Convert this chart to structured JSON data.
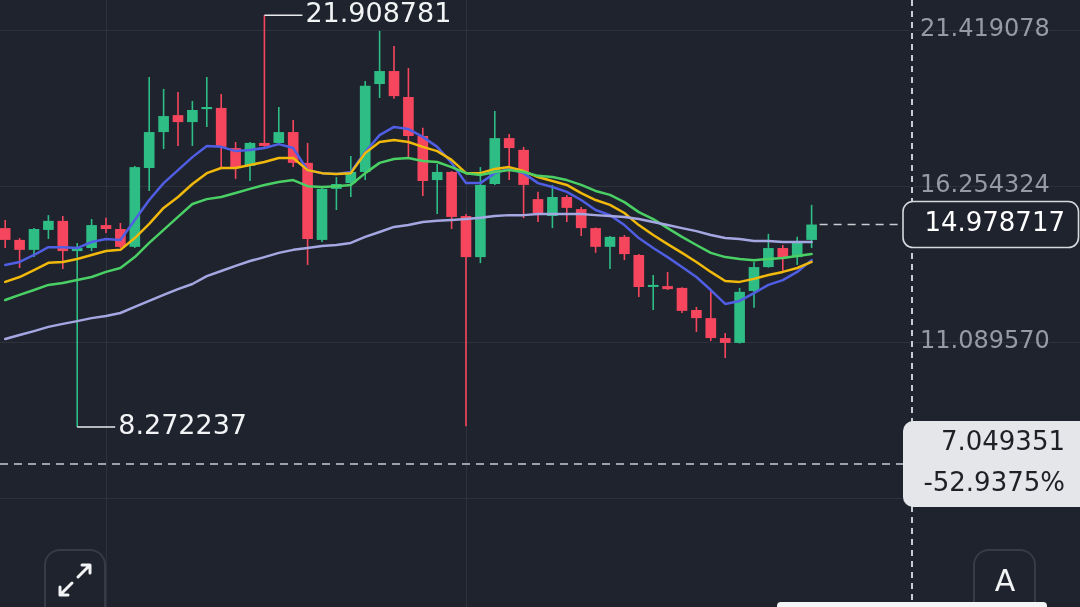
{
  "chart_data": {
    "type": "candlestick",
    "categories": [
      null,
      null,
      null,
      null,
      null,
      null,
      null,
      null,
      null,
      null,
      null,
      null,
      null,
      null,
      null,
      null,
      null,
      null,
      null,
      null,
      null,
      null,
      null,
      null,
      null,
      null,
      null,
      null,
      null,
      null,
      null,
      null,
      null,
      null,
      null,
      null,
      null,
      null,
      null,
      null,
      null,
      null,
      null,
      null,
      null,
      null,
      null,
      null,
      null,
      null,
      null,
      null,
      null,
      null,
      null,
      null,
      null
    ],
    "ohlc": [
      [
        14.86,
        15.13,
        14.2,
        14.47
      ],
      [
        14.47,
        14.53,
        13.54,
        14.14
      ],
      [
        14.14,
        14.86,
        13.9,
        14.83
      ],
      [
        14.8,
        15.29,
        14.5,
        15.1
      ],
      [
        15.1,
        15.26,
        13.51,
        14.1
      ],
      [
        14.1,
        14.37,
        8.272237,
        14.2
      ],
      [
        14.2,
        15.16,
        14.1,
        14.96
      ],
      [
        14.96,
        15.2,
        14.7,
        14.83
      ],
      [
        14.83,
        15.03,
        14.2,
        14.24
      ],
      [
        14.24,
        16.92,
        14.2,
        16.88
      ],
      [
        16.85,
        19.86,
        16.09,
        18.04
      ],
      [
        18.04,
        19.47,
        17.48,
        18.57
      ],
      [
        18.6,
        19.37,
        17.58,
        18.37
      ],
      [
        18.37,
        19.07,
        17.58,
        18.77
      ],
      [
        18.8,
        19.86,
        18.21,
        18.87
      ],
      [
        18.84,
        19.3,
        16.85,
        17.55
      ],
      [
        17.51,
        17.71,
        16.49,
        16.85
      ],
      [
        16.92,
        17.71,
        16.42,
        17.68
      ],
      [
        17.68,
        21.908781,
        17.55,
        17.58
      ],
      [
        17.68,
        18.87,
        17.61,
        18.04
      ],
      [
        18.04,
        18.44,
        16.88,
        17.02
      ],
      [
        17.02,
        17.68,
        13.64,
        14.5
      ],
      [
        14.47,
        16.22,
        14.4,
        16.16
      ],
      [
        16.16,
        16.55,
        15.46,
        16.32
      ],
      [
        16.35,
        17.25,
        15.89,
        16.72
      ],
      [
        16.72,
        19.73,
        16.45,
        19.57
      ],
      [
        19.63,
        21.39,
        19.17,
        20.06
      ],
      [
        20.06,
        20.89,
        19.14,
        19.23
      ],
      [
        19.2,
        20.16,
        17.15,
        17.91
      ],
      [
        17.91,
        18.18,
        15.92,
        16.42
      ],
      [
        16.45,
        16.98,
        15.33,
        16.72
      ],
      [
        16.72,
        16.75,
        14.83,
        15.23
      ],
      [
        15.26,
        15.33,
        8.3,
        13.9
      ],
      [
        13.9,
        16.88,
        13.7,
        16.29
      ],
      [
        16.32,
        18.74,
        16.29,
        17.84
      ],
      [
        17.84,
        17.98,
        16.45,
        17.51
      ],
      [
        17.45,
        17.55,
        15.19,
        16.29
      ],
      [
        15.82,
        16.06,
        15.06,
        15.36
      ],
      [
        15.26,
        16.29,
        14.86,
        15.89
      ],
      [
        15.89,
        15.96,
        15.06,
        15.53
      ],
      [
        15.49,
        15.56,
        14.6,
        14.86
      ],
      [
        14.86,
        14.88,
        14.04,
        14.24
      ],
      [
        14.24,
        14.6,
        13.51,
        14.57
      ],
      [
        14.57,
        14.63,
        13.8,
        14.0
      ],
      [
        13.97,
        14.0,
        12.58,
        12.91
      ],
      [
        12.91,
        13.31,
        12.15,
        12.98
      ],
      [
        12.94,
        13.41,
        12.81,
        12.84
      ],
      [
        12.88,
        12.9,
        12.05,
        12.12
      ],
      [
        12.15,
        12.25,
        11.42,
        11.88
      ],
      [
        11.88,
        12.84,
        11.12,
        11.22
      ],
      [
        11.22,
        11.39,
        10.56,
        11.06
      ],
      [
        11.06,
        12.88,
        11.04,
        12.75
      ],
      [
        12.78,
        13.74,
        12.22,
        13.57
      ],
      [
        13.57,
        14.67,
        13.55,
        14.2
      ],
      [
        14.2,
        14.3,
        13.41,
        13.9
      ],
      [
        13.9,
        14.57,
        13.64,
        14.37
      ],
      [
        14.47,
        15.63,
        14.2,
        14.978717
      ]
    ],
    "colors": [
      "#f6465d",
      "#f6465d",
      "#2ebd85",
      "#2ebd85",
      "#f6465d",
      "#2ebd85",
      "#2ebd85",
      "#f6465d",
      "#f6465d",
      "#2ebd85",
      "#2ebd85",
      "#2ebd85",
      "#f6465d",
      "#2ebd85",
      "#2ebd85",
      "#f6465d",
      "#f6465d",
      "#2ebd85",
      "#f6465d",
      "#2ebd85",
      "#f6465d",
      "#f6465d",
      "#2ebd85",
      "#2ebd85",
      "#2ebd85",
      "#2ebd85",
      "#2ebd85",
      "#f6465d",
      "#f6465d",
      "#f6465d",
      "#2ebd85",
      "#f6465d",
      "#f6465d",
      "#2ebd85",
      "#2ebd85",
      "#f6465d",
      "#f6465d",
      "#f6465d",
      "#2ebd85",
      "#f6465d",
      "#f6465d",
      "#f6465d",
      "#2ebd85",
      "#f6465d",
      "#f6465d",
      "#2ebd85",
      "#f6465d",
      "#f6465d",
      "#f6465d",
      "#f6465d",
      "#f6465d",
      "#2ebd85",
      "#2ebd85",
      "#2ebd85",
      "#f6465d",
      "#2ebd85",
      "#2ebd85"
    ],
    "series": [
      {
        "type": "line",
        "color": "#a5a7e2",
        "values": [
          11.19,
          11.32,
          11.45,
          11.59,
          11.69,
          11.78,
          11.88,
          11.95,
          12.05,
          12.25,
          12.45,
          12.65,
          12.84,
          13.01,
          13.27,
          13.44,
          13.61,
          13.77,
          13.9,
          14.04,
          14.14,
          14.2,
          14.27,
          14.3,
          14.37,
          14.57,
          14.73,
          14.9,
          14.96,
          15.06,
          15.1,
          15.13,
          15.16,
          15.2,
          15.26,
          15.29,
          15.29,
          15.33,
          15.33,
          15.33,
          15.33,
          15.29,
          15.26,
          15.23,
          15.16,
          15.06,
          14.96,
          14.86,
          14.76,
          14.63,
          14.53,
          14.5,
          14.43,
          14.43,
          14.4,
          14.4,
          14.4
        ]
      },
      {
        "type": "line",
        "color": "#4ad065",
        "values": [
          12.48,
          12.65,
          12.81,
          12.98,
          13.04,
          13.14,
          13.24,
          13.41,
          13.54,
          13.9,
          14.37,
          14.8,
          15.23,
          15.66,
          15.82,
          15.89,
          16.02,
          16.16,
          16.29,
          16.39,
          16.45,
          16.25,
          16.22,
          16.25,
          16.29,
          16.68,
          17.02,
          17.15,
          17.18,
          17.08,
          17.05,
          16.88,
          16.68,
          16.62,
          16.72,
          16.78,
          16.72,
          16.59,
          16.55,
          16.45,
          16.29,
          16.09,
          15.96,
          15.72,
          15.39,
          15.16,
          14.86,
          14.57,
          14.3,
          14.04,
          13.9,
          13.84,
          13.8,
          13.84,
          13.87,
          13.94,
          14.0
        ]
      },
      {
        "type": "line",
        "color": "#f0b90b",
        "values": [
          13.08,
          13.24,
          13.47,
          13.71,
          13.74,
          13.84,
          13.97,
          14.1,
          14.14,
          14.53,
          15.0,
          15.53,
          15.89,
          16.32,
          16.68,
          16.85,
          16.85,
          16.95,
          17.05,
          17.18,
          17.18,
          16.78,
          16.68,
          16.65,
          16.68,
          17.35,
          17.71,
          17.78,
          17.71,
          17.55,
          17.41,
          17.12,
          16.68,
          16.68,
          16.82,
          16.88,
          16.75,
          16.55,
          16.42,
          16.29,
          16.02,
          15.79,
          15.63,
          15.36,
          14.96,
          14.63,
          14.33,
          14.04,
          13.74,
          13.41,
          13.11,
          13.08,
          13.18,
          13.31,
          13.41,
          13.54,
          13.74
        ]
      },
      {
        "type": "line",
        "color": "#4f5ee3",
        "values": [
          13.64,
          13.74,
          13.97,
          14.23,
          14.23,
          14.2,
          14.4,
          14.5,
          14.47,
          15.13,
          15.79,
          16.35,
          16.78,
          17.21,
          17.58,
          17.55,
          17.41,
          17.45,
          17.51,
          17.64,
          17.51,
          16.78,
          16.68,
          16.65,
          16.72,
          17.38,
          17.94,
          18.21,
          18.14,
          17.88,
          17.55,
          17.02,
          16.35,
          16.35,
          16.68,
          16.82,
          16.68,
          16.35,
          16.22,
          16.06,
          15.79,
          15.46,
          15.29,
          14.96,
          14.53,
          14.2,
          13.9,
          13.57,
          13.24,
          12.81,
          12.35,
          12.45,
          12.71,
          12.98,
          13.14,
          13.41,
          13.8
        ]
      }
    ],
    "ylim": [
      2.3161,
      22.4123
    ],
    "yticks": [
      {
        "value": 5.924816,
        "label": null
      },
      {
        "value": 11.08957,
        "label": "11.089570"
      },
      16.254324,
      21.419078
    ],
    "tick_labels": "y",
    "grid": true,
    "marker": "none",
    "ref_lines": [
      {
        "axis": "y",
        "value": 14.978717,
        "label": "14.978717",
        "line_style": "dashed"
      },
      {
        "axis": "y",
        "value": 7.049351,
        "label": "7.049351\n-52.9375%",
        "line_style": "dashed"
      }
    ],
    "annotations": [
      "21.908781",
      "8.272237",
      "A"
    ]
  }
}
